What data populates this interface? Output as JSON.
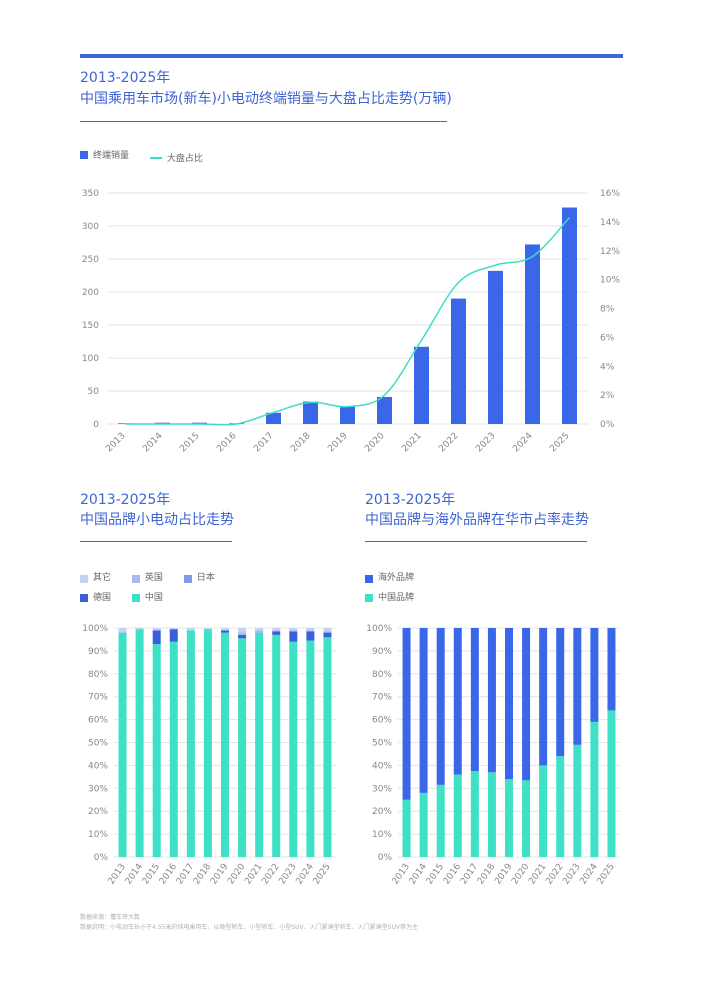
{
  "colors": {
    "accent": "#3e64d6",
    "bar": "#3a67e8",
    "line": "#3fdcc9",
    "china": "#3ee0c6",
    "overseas": "#3a67e8",
    "other": "#c6d0f2",
    "uk": "#a9b8f0",
    "japan": "#7f99ee",
    "germany": "#3a5fd8",
    "grid": "#e4e4e4"
  },
  "chart1": {
    "title_line1": "2013-2025年",
    "title_line2": "中国乘用车市场(新车)小电动终端销量与大盘占比走势(万辆)",
    "legend_bar": "终端销量",
    "legend_line": "大盘占比"
  },
  "chart2": {
    "title_line1": "2013-2025年",
    "title_line2": "中国品牌小电动占比走势",
    "legend": [
      "其它",
      "英国",
      "日本",
      "德国",
      "中国"
    ]
  },
  "chart3": {
    "title_line1": "2013-2025年",
    "title_line2": "中国品牌与海外品牌在华市占率走势",
    "legend": [
      "海外品牌",
      "中国品牌"
    ]
  },
  "footer": {
    "source": "数据来源：懂车帝大数",
    "note": "数据说明：小电动车长小于4.55米的纯电乘用车，以微型轿车、小型轿车、小型SUV、入门紧凑型轿车、入门紧凑型SUV等为主"
  },
  "chart_data": [
    {
      "type": "bar",
      "title": "中国乘用车市场(新车)小电动终端销量与大盘占比走势(万辆)",
      "categories": [
        "2013",
        "2014",
        "2015",
        "2016",
        "2017",
        "2018",
        "2019",
        "2020",
        "2021",
        "2022",
        "2023",
        "2024",
        "2025"
      ],
      "series": [
        {
          "name": "终端销量",
          "values": [
            1,
            2,
            2,
            1,
            17,
            34,
            27,
            41,
            117,
            190,
            232,
            272,
            328
          ]
        },
        {
          "name": "大盘占比",
          "type": "line",
          "values": [
            0.0,
            0.0,
            0.0,
            0.0,
            0.8,
            1.5,
            1.2,
            2.0,
            5.8,
            9.8,
            11.0,
            11.6,
            14.3
          ]
        }
      ],
      "ylim": [
        0,
        350
      ],
      "yticks": [
        0,
        50,
        100,
        150,
        200,
        250,
        300,
        350
      ],
      "y2lim": [
        0,
        16
      ],
      "y2ticks": [
        "0%",
        "2%",
        "4%",
        "6%",
        "8%",
        "10%",
        "12%",
        "14%",
        "16%"
      ],
      "grid": true,
      "legend": "top-left"
    },
    {
      "type": "bar",
      "stacked": true,
      "title": "中国品牌小电动占比走势",
      "categories": [
        "2013",
        "2014",
        "2015",
        "2016",
        "2017",
        "2018",
        "2019",
        "2020",
        "2021",
        "2022",
        "2023",
        "2024",
        "2025"
      ],
      "series": [
        {
          "name": "中国",
          "values": [
            98,
            99.5,
            93,
            94,
            99,
            99.5,
            98,
            95.5,
            98,
            97,
            94,
            94.5,
            96
          ]
        },
        {
          "name": "德国",
          "values": [
            0,
            0,
            6,
            5.5,
            0,
            0,
            1,
            1.5,
            0,
            1.5,
            4.5,
            4,
            2
          ]
        },
        {
          "name": "日本",
          "values": [
            0,
            0,
            0,
            0,
            0,
            0,
            0,
            0,
            0,
            0,
            0,
            0,
            0
          ]
        },
        {
          "name": "英国",
          "values": [
            0,
            0,
            0,
            0,
            0,
            0,
            0,
            1,
            1,
            0.5,
            0.5,
            0.5,
            0.5
          ]
        },
        {
          "name": "其它",
          "values": [
            2,
            0.5,
            1,
            0.5,
            1,
            0.5,
            1,
            2,
            1,
            1,
            1,
            1,
            1.5
          ]
        }
      ],
      "ylim": [
        0,
        100
      ],
      "yticks": [
        "0%",
        "10%",
        "20%",
        "30%",
        "40%",
        "50%",
        "60%",
        "70%",
        "80%",
        "90%",
        "100%"
      ],
      "grid": true,
      "legend": "top-left"
    },
    {
      "type": "bar",
      "stacked": true,
      "title": "中国品牌与海外品牌在华市占率走势",
      "categories": [
        "2013",
        "2014",
        "2015",
        "2016",
        "2017",
        "2018",
        "2019",
        "2020",
        "2021",
        "2022",
        "2023",
        "2024",
        "2025"
      ],
      "series": [
        {
          "name": "中国品牌",
          "values": [
            25,
            28,
            31.5,
            36,
            37.5,
            37,
            34,
            33.5,
            40,
            44,
            49,
            59,
            64
          ]
        },
        {
          "name": "海外品牌",
          "values": [
            75,
            72,
            68.5,
            64,
            62.5,
            63,
            66,
            66.5,
            60,
            56,
            51,
            41,
            36
          ]
        }
      ],
      "ylim": [
        0,
        100
      ],
      "yticks": [
        "0%",
        "10%",
        "20%",
        "30%",
        "40%",
        "50%",
        "60%",
        "70%",
        "80%",
        "90%",
        "100%"
      ],
      "grid": true,
      "legend": "top-left"
    }
  ]
}
